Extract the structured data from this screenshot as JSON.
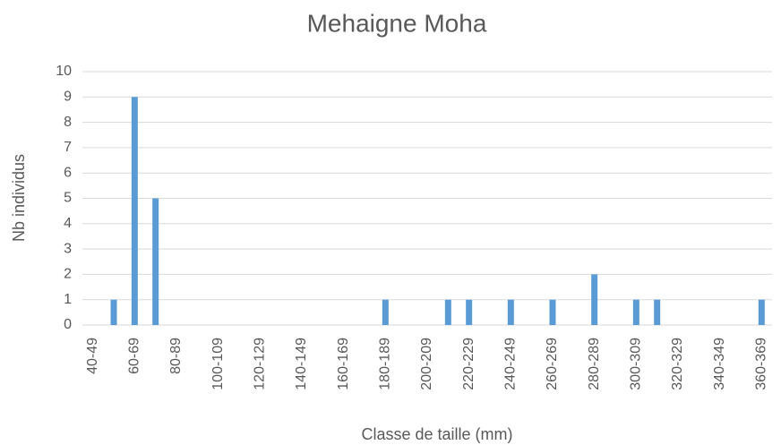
{
  "chart_data": {
    "type": "bar",
    "title": "Mehaigne Moha",
    "xlabel": "Classe de taille (mm)",
    "ylabel": "Nb individus",
    "categories": [
      "40-49",
      null,
      "60-69",
      null,
      "80-89",
      null,
      "100-109",
      null,
      "120-129",
      null,
      "140-149",
      null,
      "160-169",
      null,
      "180-189",
      null,
      "200-209",
      null,
      "220-229",
      null,
      "240-249",
      null,
      "260-269",
      null,
      "280-289",
      null,
      "300-309",
      null,
      "320-329",
      null,
      "340-349",
      null,
      "360-369"
    ],
    "values": [
      0,
      1,
      9,
      5,
      0,
      0,
      0,
      0,
      0,
      0,
      0,
      0,
      0,
      0,
      1,
      0,
      0,
      1,
      1,
      0,
      1,
      0,
      1,
      0,
      2,
      0,
      1,
      1,
      0,
      0,
      0,
      0,
      1
    ],
    "color": "#5b9bd5",
    "ylim": [
      0,
      10
    ],
    "yticks": [
      0,
      1,
      2,
      3,
      4,
      5,
      6,
      7,
      8,
      9,
      10
    ],
    "grid": true
  }
}
